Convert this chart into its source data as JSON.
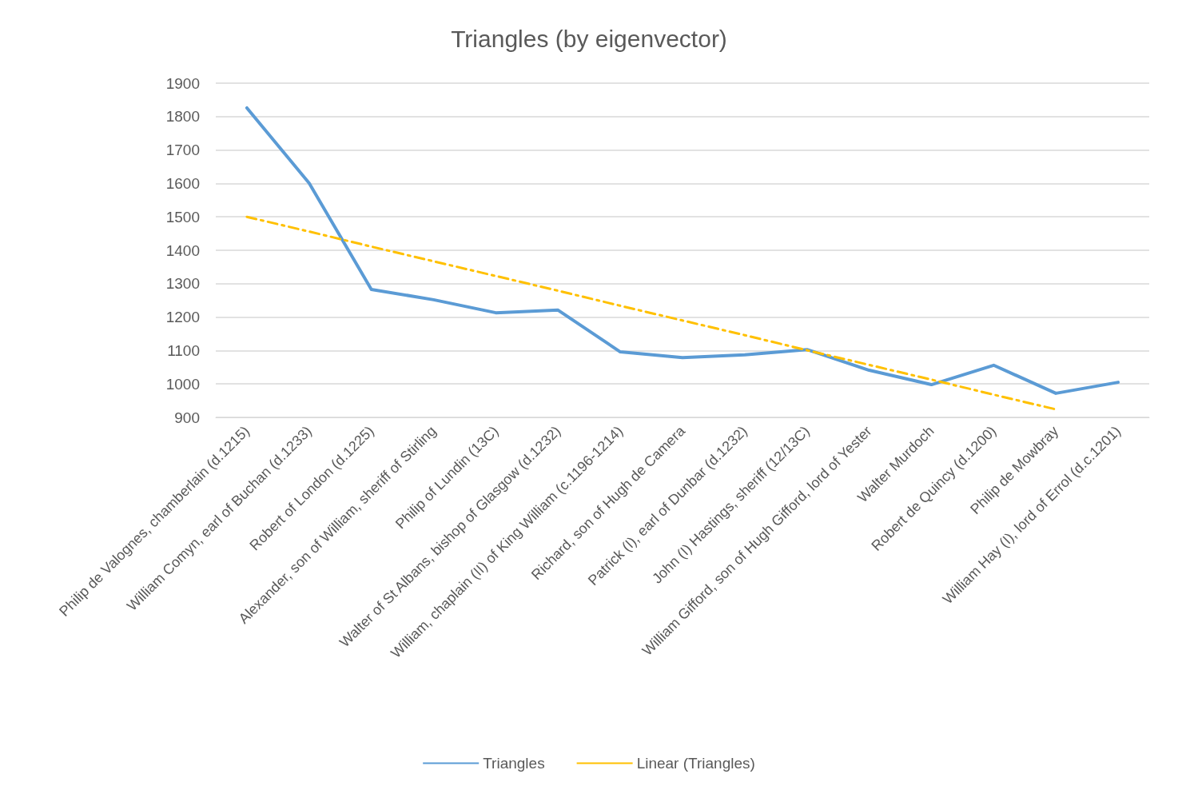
{
  "chart_data": {
    "type": "line",
    "title": "Triangles (by eigenvector)",
    "categories": [
      "Philip de Valognes, chamberlain (d.1215)",
      "William Comyn, earl of Buchan (d.1233)",
      "Robert of London (d.1225)",
      "Alexander, son of William, sheriff of Stirling",
      "Philip of Lundin (13C)",
      "Walter of St Albans, bishop of Glasgow (d.1232)",
      "William, chaplain (II) of King William (c.1196-1214)",
      "Richard, son of Hugh de Camera",
      "Patrick (I), earl of Dunbar (d.1232)",
      "John (I) Hastings, sheriff (12/13C)",
      "William Gifford, son of Hugh Gifford, lord of Yester",
      "Walter Murdoch",
      "Robert de Quincy (d.1200)",
      "Philip de Mowbray",
      "William Hay (I), lord of Errol (d.c.1201)"
    ],
    "series": [
      {
        "name": "Triangles",
        "color": "#5b9bd5",
        "line_style": "solid",
        "values": [
          1826,
          1601,
          1283,
          1252,
          1213,
          1221,
          1096,
          1079,
          1087,
          1103,
          1041,
          998,
          1056,
          972,
          1005
        ]
      },
      {
        "name": "Linear (Triangles)",
        "color": "#ffc000",
        "line_style": "dashed",
        "values": [
          1500,
          1456,
          1411,
          1367,
          1323,
          1279,
          1234,
          1190,
          1146,
          1101,
          1057,
          1013,
          968,
          924,
          null
        ]
      }
    ],
    "ylim": [
      900,
      1900
    ],
    "yticks": [
      900,
      1000,
      1100,
      1200,
      1300,
      1400,
      1500,
      1600,
      1700,
      1800,
      1900
    ],
    "grid": "y",
    "legend": "bottom",
    "marker": "none"
  }
}
